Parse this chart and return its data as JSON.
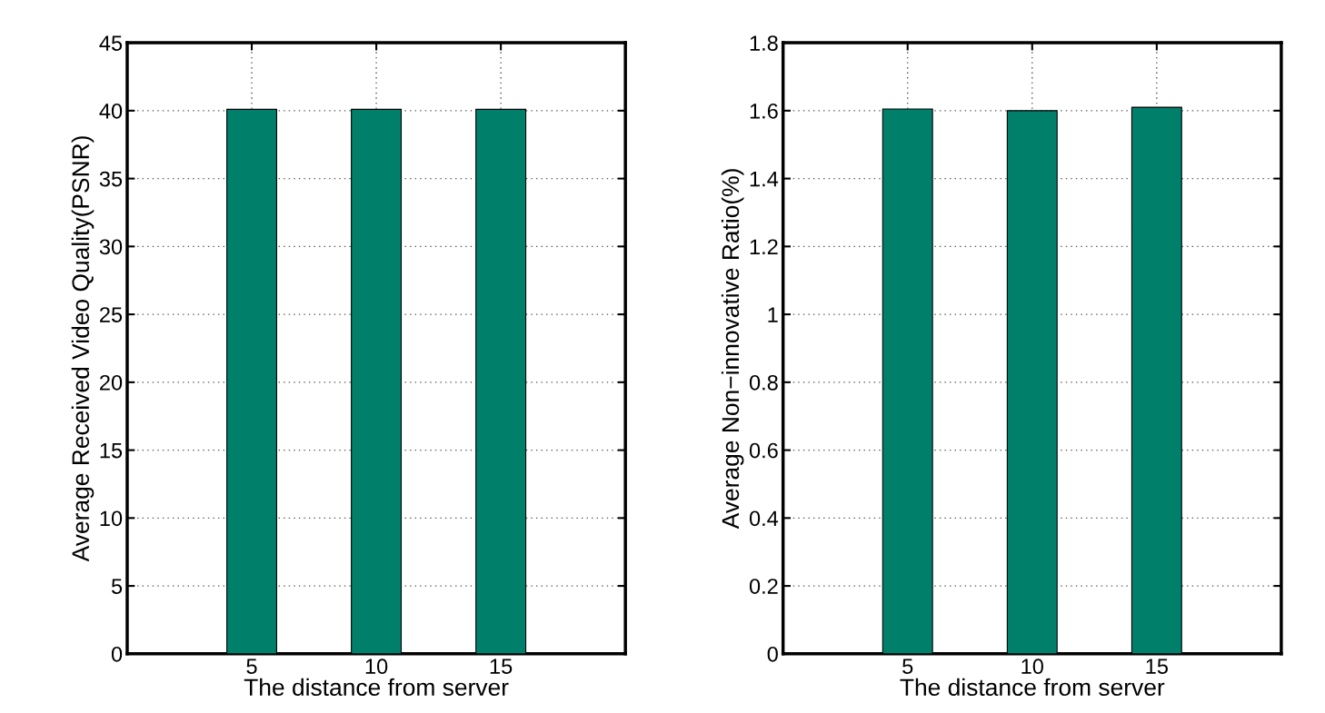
{
  "chart_data": [
    {
      "type": "bar",
      "x": [
        5,
        10,
        15
      ],
      "values": [
        40.1,
        40.1,
        40.1
      ],
      "color": "#00806a",
      "xlim": [
        0,
        20
      ],
      "xticks": [
        5,
        10,
        15
      ],
      "ylim": [
        0,
        45
      ],
      "yticks": [
        0,
        5,
        10,
        15,
        20,
        25,
        30,
        35,
        40,
        45
      ],
      "xlabel": "The distance from server",
      "ylabel": "Average Received Video Quality(PSNR)",
      "grid": true
    },
    {
      "type": "bar",
      "x": [
        5,
        10,
        15
      ],
      "values": [
        1.605,
        1.6,
        1.61
      ],
      "color": "#00806a",
      "xlim": [
        0,
        20
      ],
      "xticks": [
        5,
        10,
        15
      ],
      "ylim": [
        0,
        1.8
      ],
      "yticks": [
        0,
        0.2,
        0.4,
        0.6,
        0.8,
        1,
        1.2,
        1.4,
        1.6,
        1.8
      ],
      "xlabel": "The distance from server",
      "ylabel": "Average Non−innovative Ratio(%)",
      "grid": true
    }
  ]
}
